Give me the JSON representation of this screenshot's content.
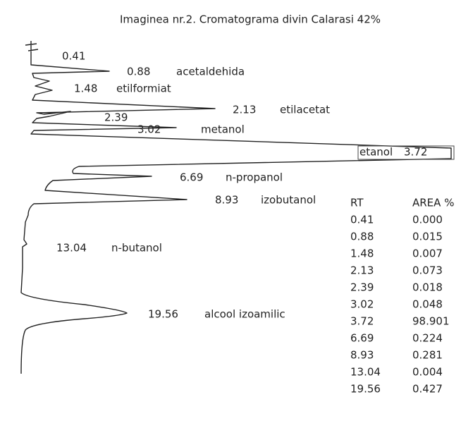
{
  "title": "Imaginea nr.2. Cromatograma divin Calarasi 42%",
  "peaks": [
    {
      "rt": "0.41"
    },
    {
      "rt": "0.88",
      "name": "acetaldehida"
    },
    {
      "rt": "1.48",
      "name": "etilformiat"
    },
    {
      "rt": "2.13",
      "name": "etilacetat"
    },
    {
      "rt": "2.39"
    },
    {
      "rt": "3.02",
      "name": "metanol"
    },
    {
      "rt": "3.72",
      "name": "etanol"
    },
    {
      "rt": "6.69",
      "name": "n-propanol"
    },
    {
      "rt": "8.93",
      "name": "izobutanol"
    },
    {
      "rt": "13.04",
      "name": "n-butanol"
    },
    {
      "rt": "19.56",
      "name": "alcool izoamilic"
    }
  ],
  "table": {
    "header": [
      "RT",
      "AREA %"
    ],
    "rows": [
      [
        "0.41",
        "0.000"
      ],
      [
        "0.88",
        "0.015"
      ],
      [
        "1.48",
        "0.007"
      ],
      [
        "2.13",
        "0.073"
      ],
      [
        "2.39",
        "0.018"
      ],
      [
        "3.02",
        "0.048"
      ],
      [
        "3.72",
        "98.901"
      ],
      [
        "6.69",
        "0.224"
      ],
      [
        "8.93",
        "0.281"
      ],
      [
        "13.04",
        "0.004"
      ],
      [
        "19.56",
        "0.427"
      ]
    ]
  }
}
